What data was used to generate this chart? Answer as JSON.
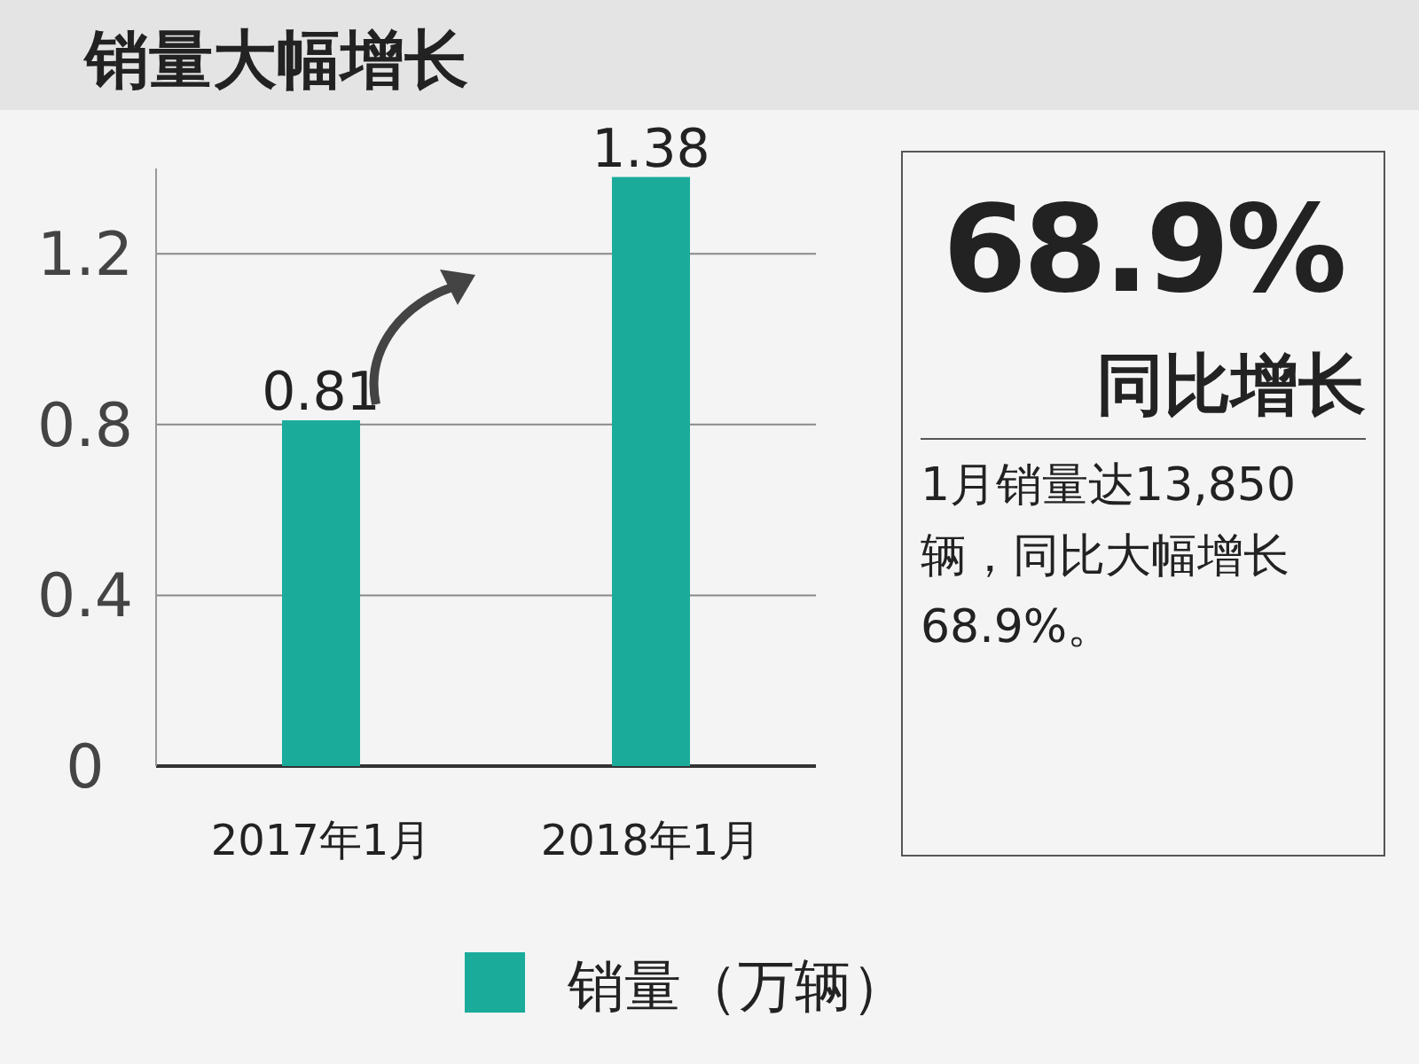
{
  "chart_data": [
    {
      "type": "bar",
      "title": "销量大幅增长",
      "categories": [
        "2017年1月",
        "2018年1月"
      ],
      "series": [
        {
          "name": "销量（万辆）",
          "color": "#1aab9b",
          "values": [
            0.81,
            1.38
          ]
        }
      ],
      "ylim": [
        0,
        1.4
      ],
      "yticks": [
        0,
        0.4,
        0.8,
        1.2
      ],
      "grid": "y",
      "legend": "bottom",
      "data_labels": true
    },
    {
      "type": "other",
      "title": "68.9%",
      "subtitle": "同比增长",
      "annotations": [
        "1月销量达13,850辆，同比大幅增长68.9%。"
      ]
    }
  ]
}
